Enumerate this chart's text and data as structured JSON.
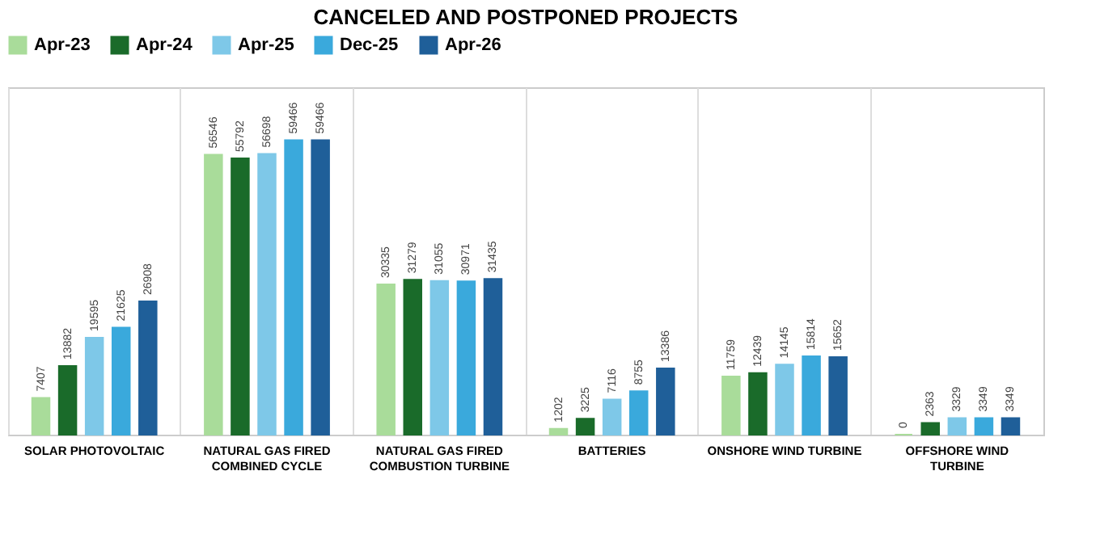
{
  "chart_data": {
    "type": "bar",
    "title": "CANCELED AND POSTPONED PROJECTS",
    "categories": [
      "SOLAR PHOTOVOLTAIC",
      "NATURAL GAS FIRED COMBINED CYCLE",
      "NATURAL GAS FIRED COMBUSTION TURBINE",
      "BATTERIES",
      "ONSHORE WIND TURBINE",
      "OFFSHORE WIND TURBINE"
    ],
    "series": [
      {
        "name": "Apr-23",
        "color": "#a9dc9a",
        "values": [
          7407,
          56546,
          30335,
          1202,
          11759,
          0
        ]
      },
      {
        "name": "Apr-24",
        "color": "#1a6b2a",
        "values": [
          13882,
          55792,
          31279,
          3225,
          12439,
          2363
        ]
      },
      {
        "name": "Apr-25",
        "color": "#7ec8e8",
        "values": [
          19595,
          56698,
          31055,
          7116,
          14145,
          3329
        ]
      },
      {
        "name": "Dec-25",
        "color": "#3aa9dc",
        "values": [
          21625,
          59466,
          30971,
          8755,
          15814,
          3349
        ]
      },
      {
        "name": "Apr-26",
        "color": "#1f5f99",
        "values": [
          26908,
          59466,
          31435,
          13386,
          15652,
          3349
        ]
      }
    ],
    "data_labels": true,
    "tick_labels": "x",
    "grid": "x",
    "legend": "top"
  }
}
